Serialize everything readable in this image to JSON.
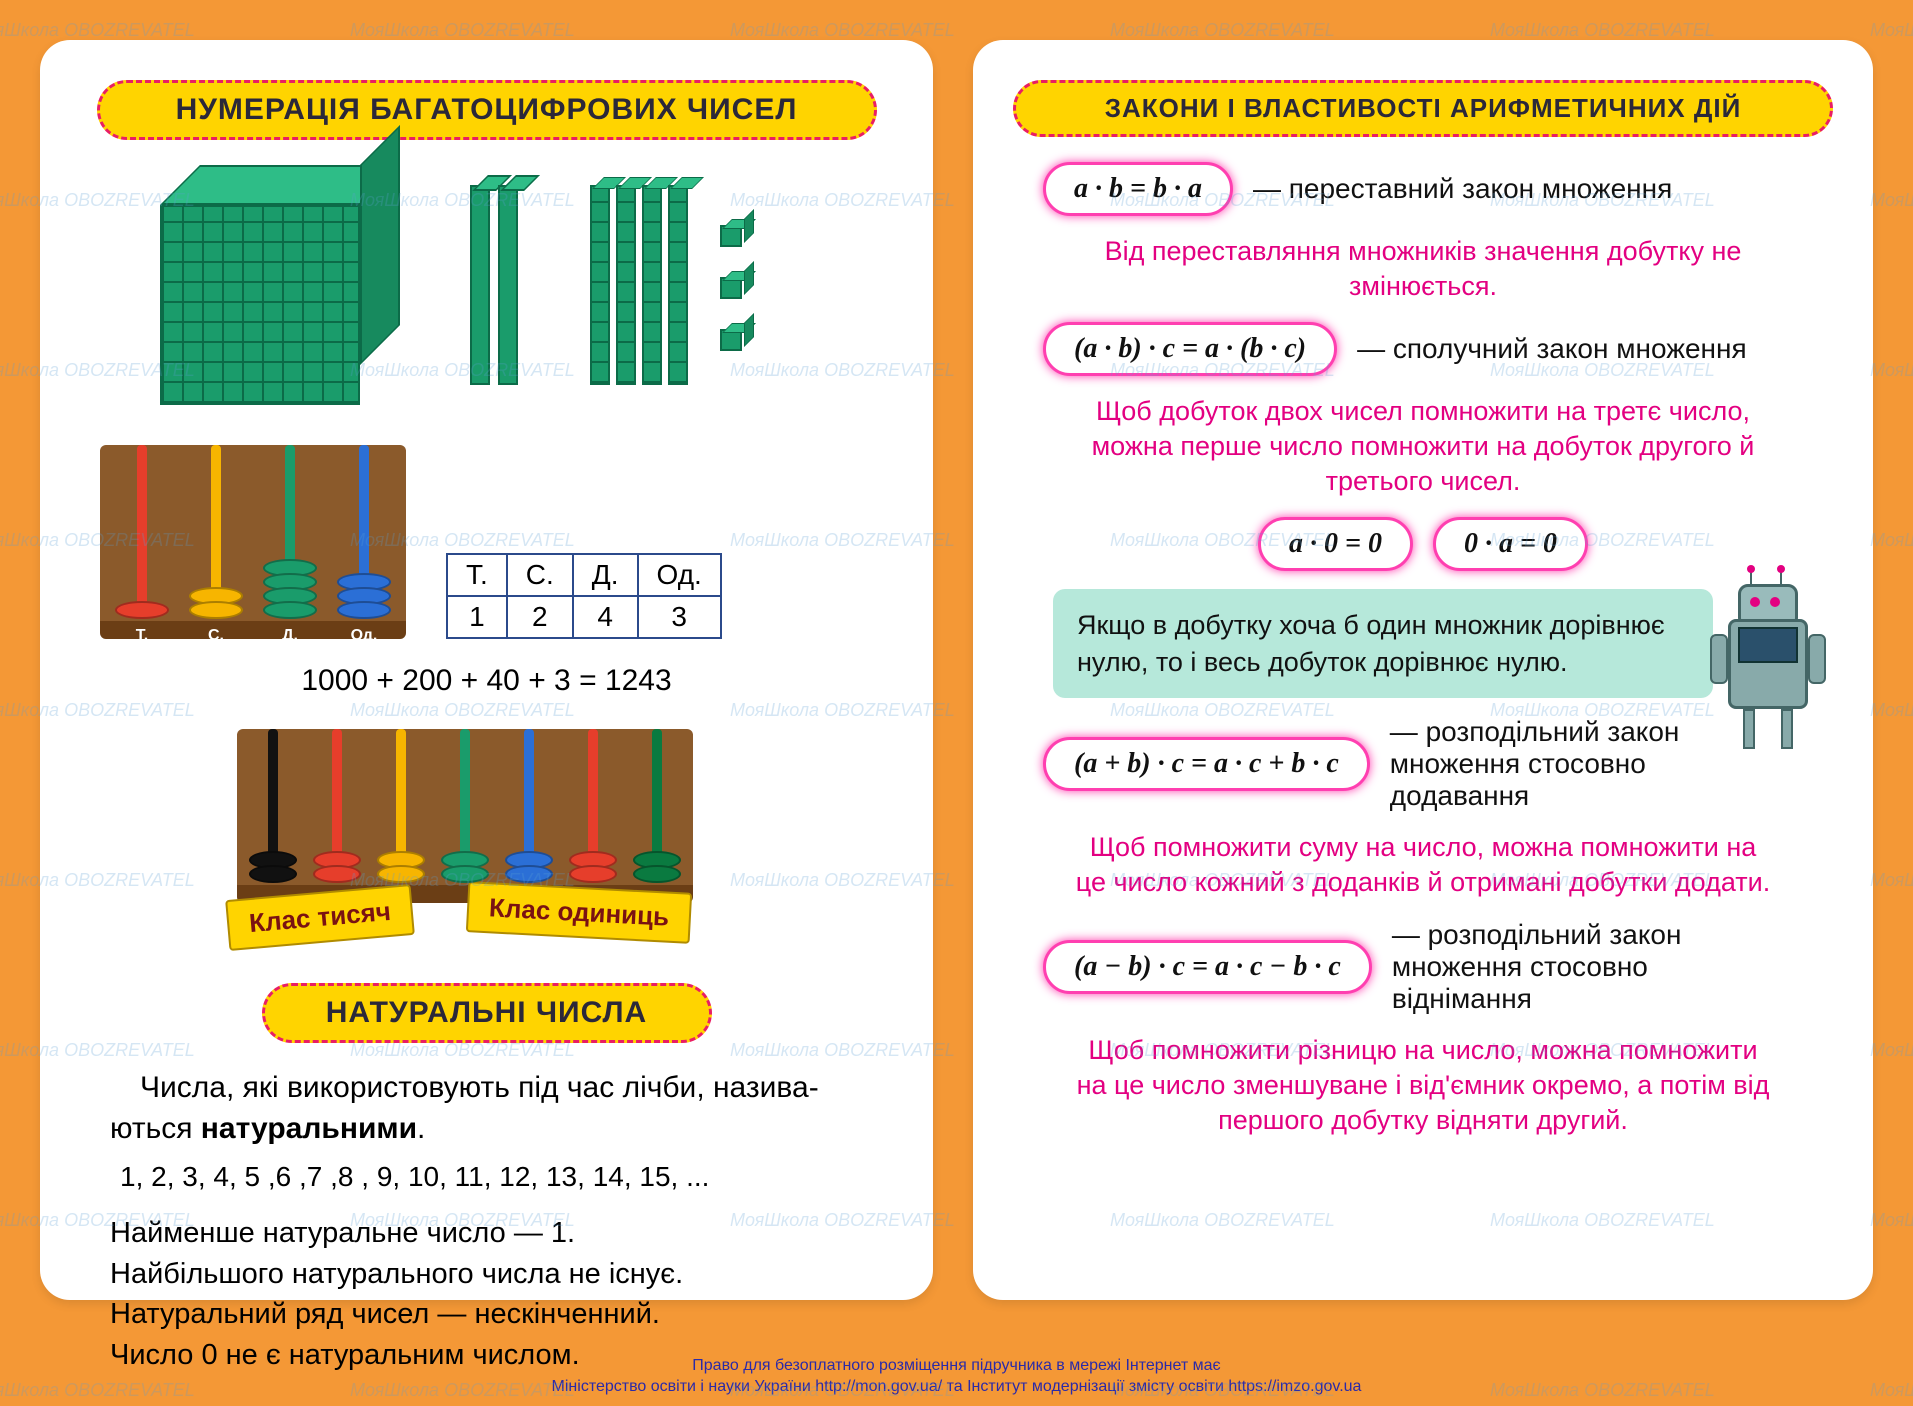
{
  "colors": {
    "page_bg": "#f49836",
    "card_bg": "#ffffff",
    "title_bg": "#ffd400",
    "title_border": "#e91e63",
    "title_text": "#2b2839",
    "formula_border": "#ff3fb0",
    "pink_text": "#e30081",
    "callout_bg": "#b6e8da",
    "block_green": "#1a9c6b",
    "block_dark": "#0c6b48",
    "watermark": "#5a9fd4",
    "foot_text": "#2b2aa8"
  },
  "left": {
    "title1": "НУМЕРАЦІЯ БАГАТОЦИФРОВИХ ЧИСЕЛ",
    "pv_table": {
      "headers": [
        "Т.",
        "С.",
        "Д.",
        "Од."
      ],
      "values": [
        "1",
        "2",
        "4",
        "3"
      ]
    },
    "abacus1": [
      {
        "label": "Т.",
        "color": "#e63e2b",
        "rings": 1
      },
      {
        "label": "С.",
        "color": "#f7b500",
        "rings": 2
      },
      {
        "label": "Д.",
        "color": "#1a9c6b",
        "rings": 4
      },
      {
        "label": "Од.",
        "color": "#2b6fd6",
        "rings": 3
      }
    ],
    "decomp": "1000 + 200 + 40 + 3 = 1243",
    "abacus2_colors": [
      "#111111",
      "#e63e2b",
      "#f7b500",
      "#1a9c6b",
      "#2b6fd6",
      "#e63e2b",
      "#0a7a40"
    ],
    "class_thousands": "Клас тисяч",
    "class_units": "Клас одиниць",
    "title3": "НАТУРАЛЬНІ ЧИСЛА",
    "nat_def_1": "Числа, які використовують під час лічби, назива-",
    "nat_def_2": "ються ",
    "nat_def_bold": "натуральними",
    "nat_def_3": ".",
    "nums_line": "1, 2, 3, 4, 5 ,6 ,7 ,8 , 9, 10, 11, 12, 13, 14, 15, ...",
    "facts": [
      "Найменше натуральне число — 1.",
      "Найбільшого натурального числа не існує.",
      "Натуральний ряд чисел — нескінченний.",
      "Число 0 не є натуральним числом."
    ]
  },
  "right": {
    "title2": "ЗАКОНИ І ВЛАСТИВОСТІ АРИФМЕТИЧНИХ ДІЙ",
    "r1_formula": "a · b = b · a",
    "r1_desc": "— переставний закон множення",
    "r1_pink": "Від переставляння множників значення добутку не змінюється.",
    "r2_formula": "(a · b) · c = a · (b · c)",
    "r2_desc": "— сполучний закон множення",
    "r2_pink": "Щоб добуток двох чисел помножити на третє число, можна перше число помножити на добуток другого й третього чисел.",
    "r3a_formula": "a · 0 = 0",
    "r3b_formula": "0 · a = 0",
    "callout": "Якщо в добутку хоча б один множник дорівнює нулю, то і весь добуток дорівнює нулю.",
    "r4_formula": "(a + b) · c = a · c + b · c",
    "r4_desc": "— розподільний закон множення стосовно додавання",
    "r4_pink": "Щоб помножити суму на число, можна помножити на це число кожний з доданків й отримані добутки додати.",
    "r5_formula": "(a − b) · c = a · c − b · c",
    "r5_desc": "— розподільний закон множення стосовно віднімання",
    "r5_pink": "Щоб помножити різницю на число, можна помножити на це число зменшуване і від'ємник окремо, а потім від першого добутку відняти другий."
  },
  "foot": {
    "line1": "Право для безоплатного розміщення підручника в мережі Інтернет має",
    "line2": "Міністерство освіти і науки України http://mon.gov.ua/ та Інститут модернізації змісту освіти https://imzo.gov.ua"
  },
  "watermark_text": "МояШкола  OBOZREVATEL"
}
